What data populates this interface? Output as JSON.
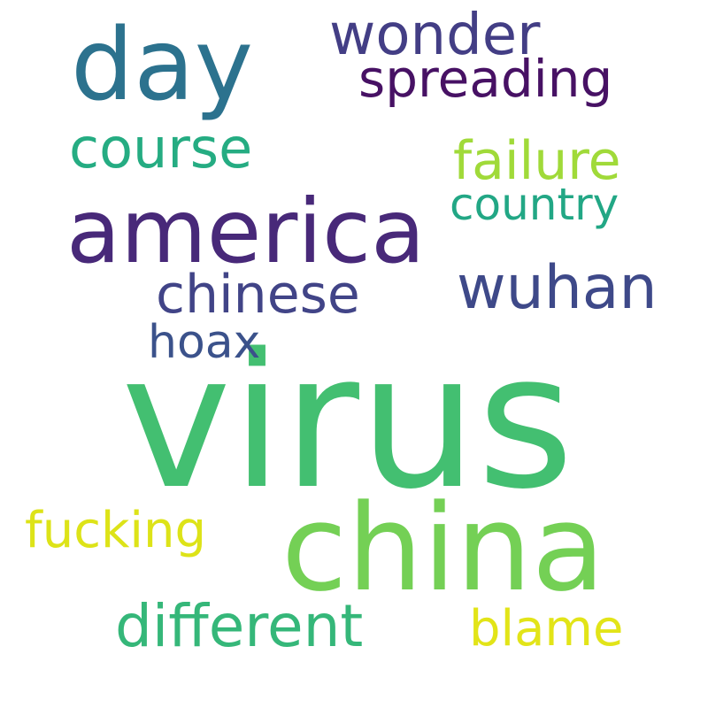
{
  "words": [
    {
      "text": "virus",
      "color": "#43bf71"
    },
    {
      "text": "china",
      "color": "#74d055"
    },
    {
      "text": "america",
      "color": "#482979"
    },
    {
      "text": "day",
      "color": "#2c728e"
    },
    {
      "text": "wonder",
      "color": "#433e85"
    },
    {
      "text": "spreading",
      "color": "#471164"
    },
    {
      "text": "course",
      "color": "#25ac82"
    },
    {
      "text": "failure",
      "color": "#a0da39"
    },
    {
      "text": "country",
      "color": "#22a785"
    },
    {
      "text": "wuhan",
      "color": "#3e4989"
    },
    {
      "text": "chinese",
      "color": "#414487"
    },
    {
      "text": "hoax",
      "color": "#3b528b"
    },
    {
      "text": "fucking",
      "color": "#dde318"
    },
    {
      "text": "different",
      "color": "#35b779"
    },
    {
      "text": "blame",
      "color": "#e2e418"
    }
  ]
}
